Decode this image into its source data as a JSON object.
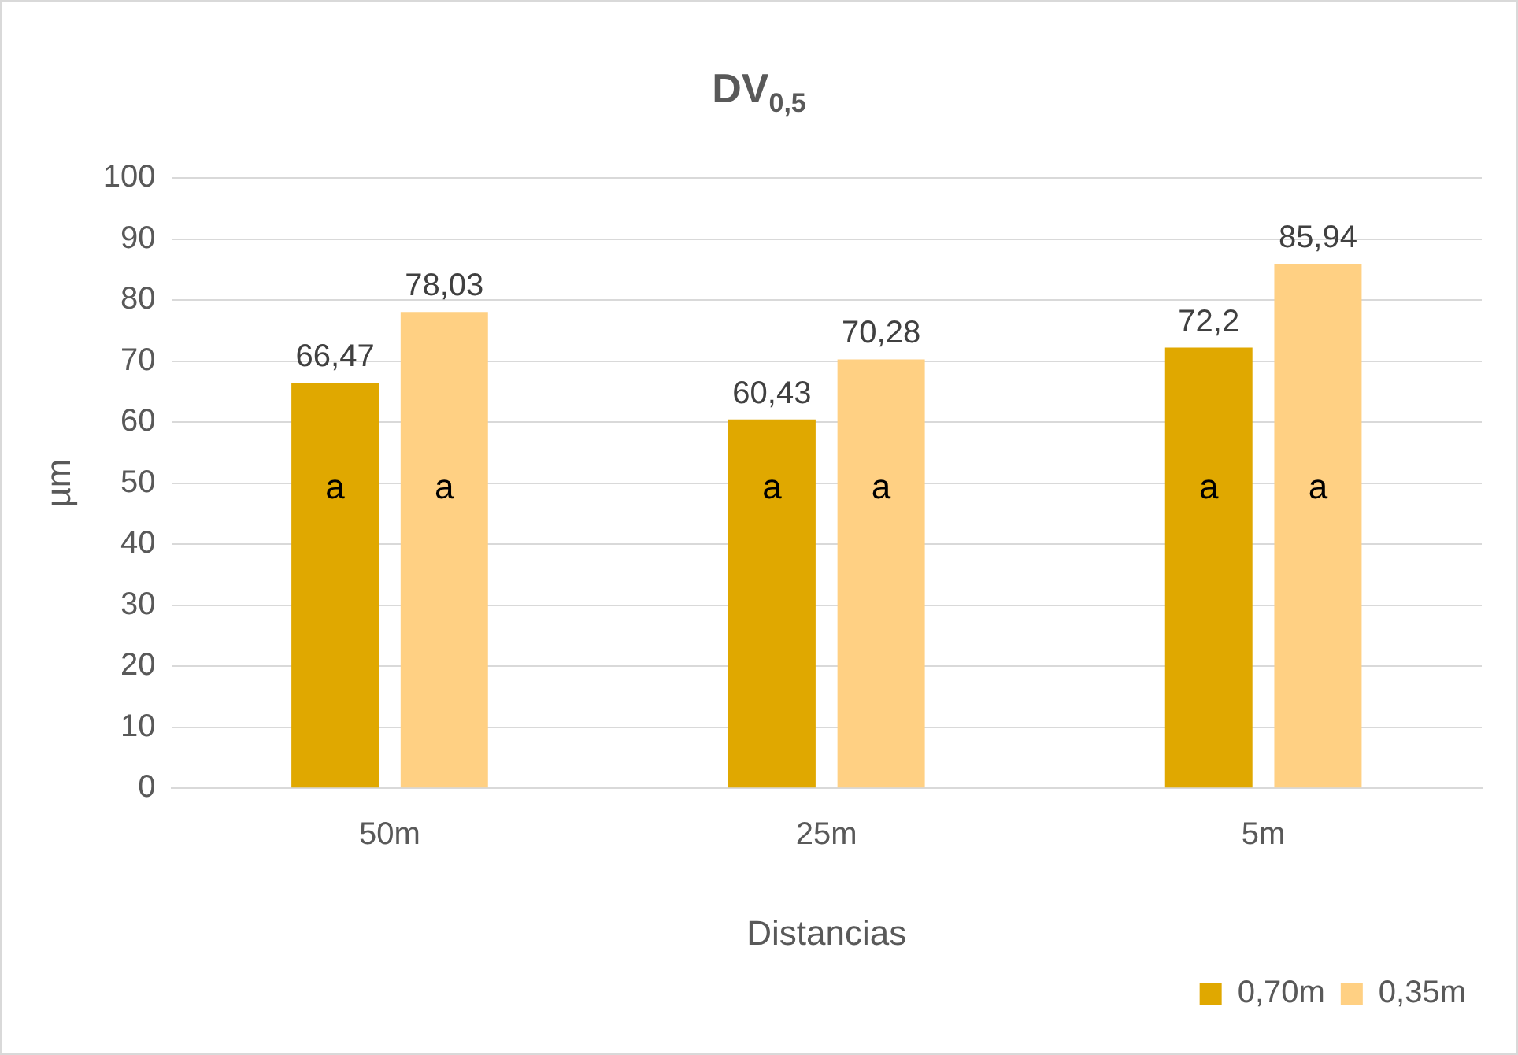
{
  "chart_data": {
    "type": "bar",
    "title": "DV$_{0,5}$",
    "xlabel": "Distancias",
    "ylabel": "µm",
    "categories": [
      "50m",
      "25m",
      "5m"
    ],
    "series": [
      {
        "name": "0,70m",
        "color": "#e0a800",
        "values": [
          66.47,
          60.43,
          72.2
        ],
        "value_labels": [
          "66,47",
          "60,43",
          "72,2"
        ]
      },
      {
        "name": "0,35m",
        "color": "#ffd083",
        "values": [
          78.03,
          70.28,
          85.94
        ],
        "value_labels": [
          "78,03",
          "70,28",
          "85,94"
        ]
      }
    ],
    "ylim": [
      0,
      100
    ],
    "yticks": [
      0,
      10,
      20,
      30,
      40,
      50,
      60,
      70,
      80,
      90,
      100
    ],
    "grid": "y",
    "legend": "bottom right",
    "annotations": [
      "a",
      "a",
      "a",
      "a",
      "a",
      "a"
    ]
  }
}
